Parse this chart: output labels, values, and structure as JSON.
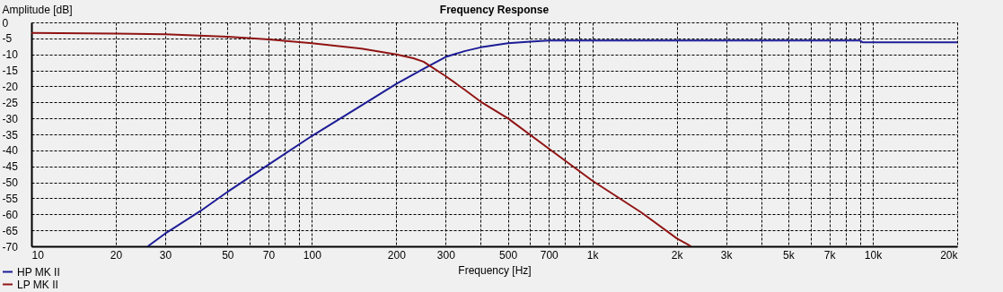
{
  "chart_data": {
    "type": "line",
    "title": "Frequency Response",
    "xlabel": "Frequency [Hz]",
    "ylabel": "Amplitude [dB]",
    "log": "x",
    "grid": true,
    "legend": "bottom left",
    "xlim": [
      10,
      20000
    ],
    "ylim": [
      -70,
      0
    ],
    "xticks": [
      10,
      20,
      30,
      {
        "value": 40,
        "label": null
      },
      50,
      {
        "value": 60,
        "label": null
      },
      70,
      {
        "value": 80,
        "label": null
      },
      {
        "value": 90,
        "label": null
      },
      100,
      200,
      300,
      {
        "value": 400,
        "label": null
      },
      500,
      {
        "value": 600,
        "label": null
      },
      700,
      {
        "value": 800,
        "label": null
      },
      {
        "value": 900,
        "label": null
      },
      {
        "value": 1000,
        "label": "1k"
      },
      {
        "value": 2000,
        "label": "2k"
      },
      {
        "value": 3000,
        "label": "3k"
      },
      {
        "value": 4000,
        "label": null
      },
      {
        "value": 5000,
        "label": "5k"
      },
      {
        "value": 6000,
        "label": null
      },
      {
        "value": 7000,
        "label": "7k"
      },
      {
        "value": 8000,
        "label": null
      },
      {
        "value": 9000,
        "label": null
      },
      {
        "value": 10000,
        "label": "10k"
      },
      {
        "value": 20000,
        "label": "20k"
      }
    ],
    "yticks": [
      0,
      -5,
      -10,
      -15,
      -20,
      -25,
      -30,
      -35,
      -40,
      -45,
      -50,
      -55,
      -60,
      -65,
      -70
    ],
    "series": [
      {
        "name": "HP MK II",
        "color": "#1c1c96",
        "x": [
          26,
          30,
          40,
          50,
          70,
          100,
          150,
          200,
          250,
          300,
          350,
          400,
          500,
          600,
          700,
          1000,
          9000,
          9200,
          20000
        ],
        "values": [
          -70,
          -66,
          -59,
          -53,
          -44.5,
          -35.5,
          -26,
          -19.2,
          -14.5,
          -10.8,
          -9,
          -7.8,
          -6.5,
          -6,
          -5.7,
          -5.7,
          -5.7,
          -6.2,
          -6.2
        ]
      },
      {
        "name": "LP MK II",
        "color": "#901414",
        "x": [
          10,
          20,
          30,
          50,
          70,
          100,
          150,
          200,
          230,
          250,
          300,
          350,
          400,
          500,
          700,
          1000,
          1500,
          2000,
          2250
        ],
        "values": [
          -3.3,
          -3.5,
          -3.7,
          -4.5,
          -5.3,
          -6.5,
          -8.2,
          -10,
          -11.2,
          -12.3,
          -16.8,
          -21,
          -24.8,
          -30,
          -39.5,
          -49.5,
          -59.5,
          -67.5,
          -70
        ]
      }
    ]
  }
}
